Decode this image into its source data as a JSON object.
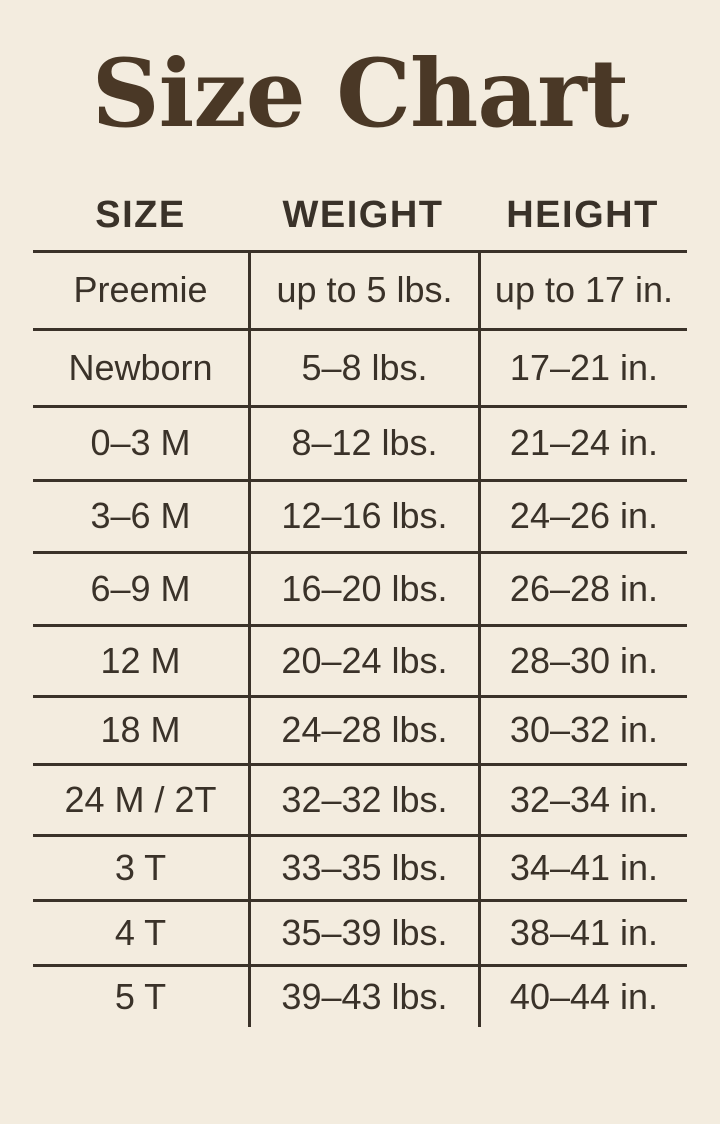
{
  "title": "Size Chart",
  "colors": {
    "background": "#f3ecdf",
    "ink": "#3a3229",
    "title": "#4a3826"
  },
  "chart_data": {
    "type": "table",
    "title": "Size Chart",
    "columns": [
      "SIZE",
      "WEIGHT",
      "HEIGHT"
    ],
    "rows": [
      [
        "Preemie",
        "up to 5 lbs.",
        "up to 17 in."
      ],
      [
        "Newborn",
        "5–8 lbs.",
        "17–21 in."
      ],
      [
        "0–3 M",
        "8–12 lbs.",
        "21–24 in."
      ],
      [
        "3–6 M",
        "12–16 lbs.",
        "24–26 in."
      ],
      [
        "6–9 M",
        "16–20 lbs.",
        "26–28 in."
      ],
      [
        "12 M",
        "20–24 lbs.",
        "28–30 in."
      ],
      [
        "18 M",
        "24–28 lbs.",
        "30–32 in."
      ],
      [
        "24 M / 2T",
        "32–32 lbs.",
        "32–34 in."
      ],
      [
        "3 T",
        "33–35 lbs.",
        "34–41 in."
      ],
      [
        "4 T",
        "35–39 lbs.",
        "38–41 in."
      ],
      [
        "5 T",
        "39–43 lbs.",
        "40–44 in."
      ]
    ],
    "grid": "horizontal rules between rows, vertical rules between columns, no outer border, no rule below last row",
    "legend": "none"
  }
}
